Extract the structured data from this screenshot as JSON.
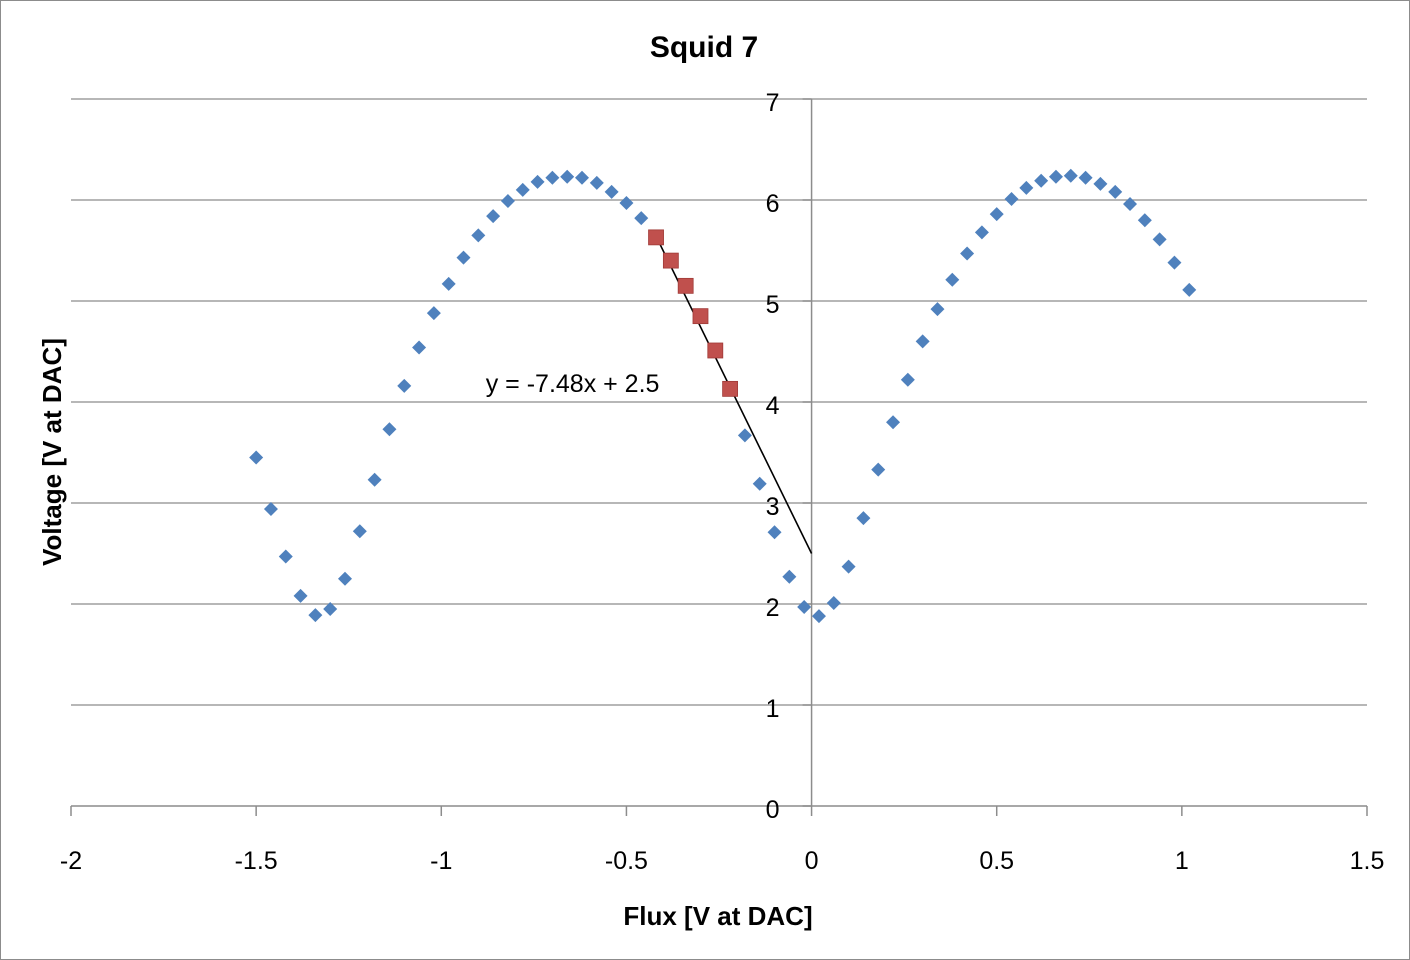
{
  "chart_data": {
    "type": "scatter",
    "title": "Squid 7",
    "xlabel": "Flux [V at DAC]",
    "ylabel": "Voltage [V at DAC]",
    "xlim": [
      -2,
      1.5
    ],
    "ylim": [
      0,
      7
    ],
    "x_ticks": [
      -2,
      -1.5,
      -1,
      -0.5,
      0,
      0.5,
      1,
      1.5
    ],
    "x_tick_labels": [
      "-2",
      "-1.5",
      "-1",
      "-0.5",
      "0",
      "0.5",
      "1",
      "1.5"
    ],
    "y_ticks": [
      0,
      1,
      2,
      3,
      4,
      5,
      6,
      7
    ],
    "y_tick_labels": [
      "0",
      "1",
      "2",
      "3",
      "4",
      "5",
      "6",
      "7"
    ],
    "grid": "horizontal major gridlines",
    "legend": "none",
    "series": [
      {
        "marker": "diamond",
        "color": "#4f81bd",
        "points": [
          [
            -1.5,
            3.45
          ],
          [
            -1.46,
            2.94
          ],
          [
            -1.42,
            2.47
          ],
          [
            -1.38,
            2.08
          ],
          [
            -1.34,
            1.89
          ],
          [
            -1.3,
            1.95
          ],
          [
            -1.26,
            2.25
          ],
          [
            -1.22,
            2.72
          ],
          [
            -1.18,
            3.23
          ],
          [
            -1.14,
            3.73
          ],
          [
            -1.1,
            4.16
          ],
          [
            -1.06,
            4.54
          ],
          [
            -1.02,
            4.88
          ],
          [
            -0.98,
            5.17
          ],
          [
            -0.94,
            5.43
          ],
          [
            -0.9,
            5.65
          ],
          [
            -0.86,
            5.84
          ],
          [
            -0.82,
            5.99
          ],
          [
            -0.78,
            6.1
          ],
          [
            -0.74,
            6.18
          ],
          [
            -0.7,
            6.22
          ],
          [
            -0.66,
            6.23
          ],
          [
            -0.62,
            6.22
          ],
          [
            -0.58,
            6.17
          ],
          [
            -0.54,
            6.08
          ],
          [
            -0.5,
            5.97
          ],
          [
            -0.46,
            5.82
          ],
          [
            -0.18,
            3.67
          ],
          [
            -0.14,
            3.19
          ],
          [
            -0.1,
            2.71
          ],
          [
            -0.06,
            2.27
          ],
          [
            -0.02,
            1.97
          ],
          [
            0.02,
            1.88
          ],
          [
            0.06,
            2.01
          ],
          [
            0.1,
            2.37
          ],
          [
            0.14,
            2.85
          ],
          [
            0.18,
            3.33
          ],
          [
            0.22,
            3.8
          ],
          [
            0.26,
            4.22
          ],
          [
            0.3,
            4.6
          ],
          [
            0.34,
            4.92
          ],
          [
            0.38,
            5.21
          ],
          [
            0.42,
            5.47
          ],
          [
            0.46,
            5.68
          ],
          [
            0.5,
            5.86
          ],
          [
            0.54,
            6.01
          ],
          [
            0.58,
            6.12
          ],
          [
            0.62,
            6.19
          ],
          [
            0.66,
            6.23
          ],
          [
            0.7,
            6.24
          ],
          [
            0.74,
            6.22
          ],
          [
            0.78,
            6.16
          ],
          [
            0.82,
            6.08
          ],
          [
            0.86,
            5.96
          ],
          [
            0.9,
            5.8
          ],
          [
            0.94,
            5.61
          ],
          [
            0.98,
            5.38
          ],
          [
            1.02,
            5.11
          ]
        ]
      },
      {
        "marker": "square",
        "color": "#c0504d",
        "points": [
          [
            -0.42,
            5.63
          ],
          [
            -0.38,
            5.4
          ],
          [
            -0.34,
            5.15
          ],
          [
            -0.3,
            4.85
          ],
          [
            -0.26,
            4.51
          ],
          [
            -0.22,
            4.13
          ]
        ]
      }
    ],
    "trendline": {
      "slope": -7.48,
      "intercept": 2.5,
      "x_range": [
        -0.42,
        0
      ],
      "color": "#000000",
      "label": "y = -7.48x + 2.5",
      "label_anchor": [
        -0.88,
        4.1
      ]
    }
  }
}
